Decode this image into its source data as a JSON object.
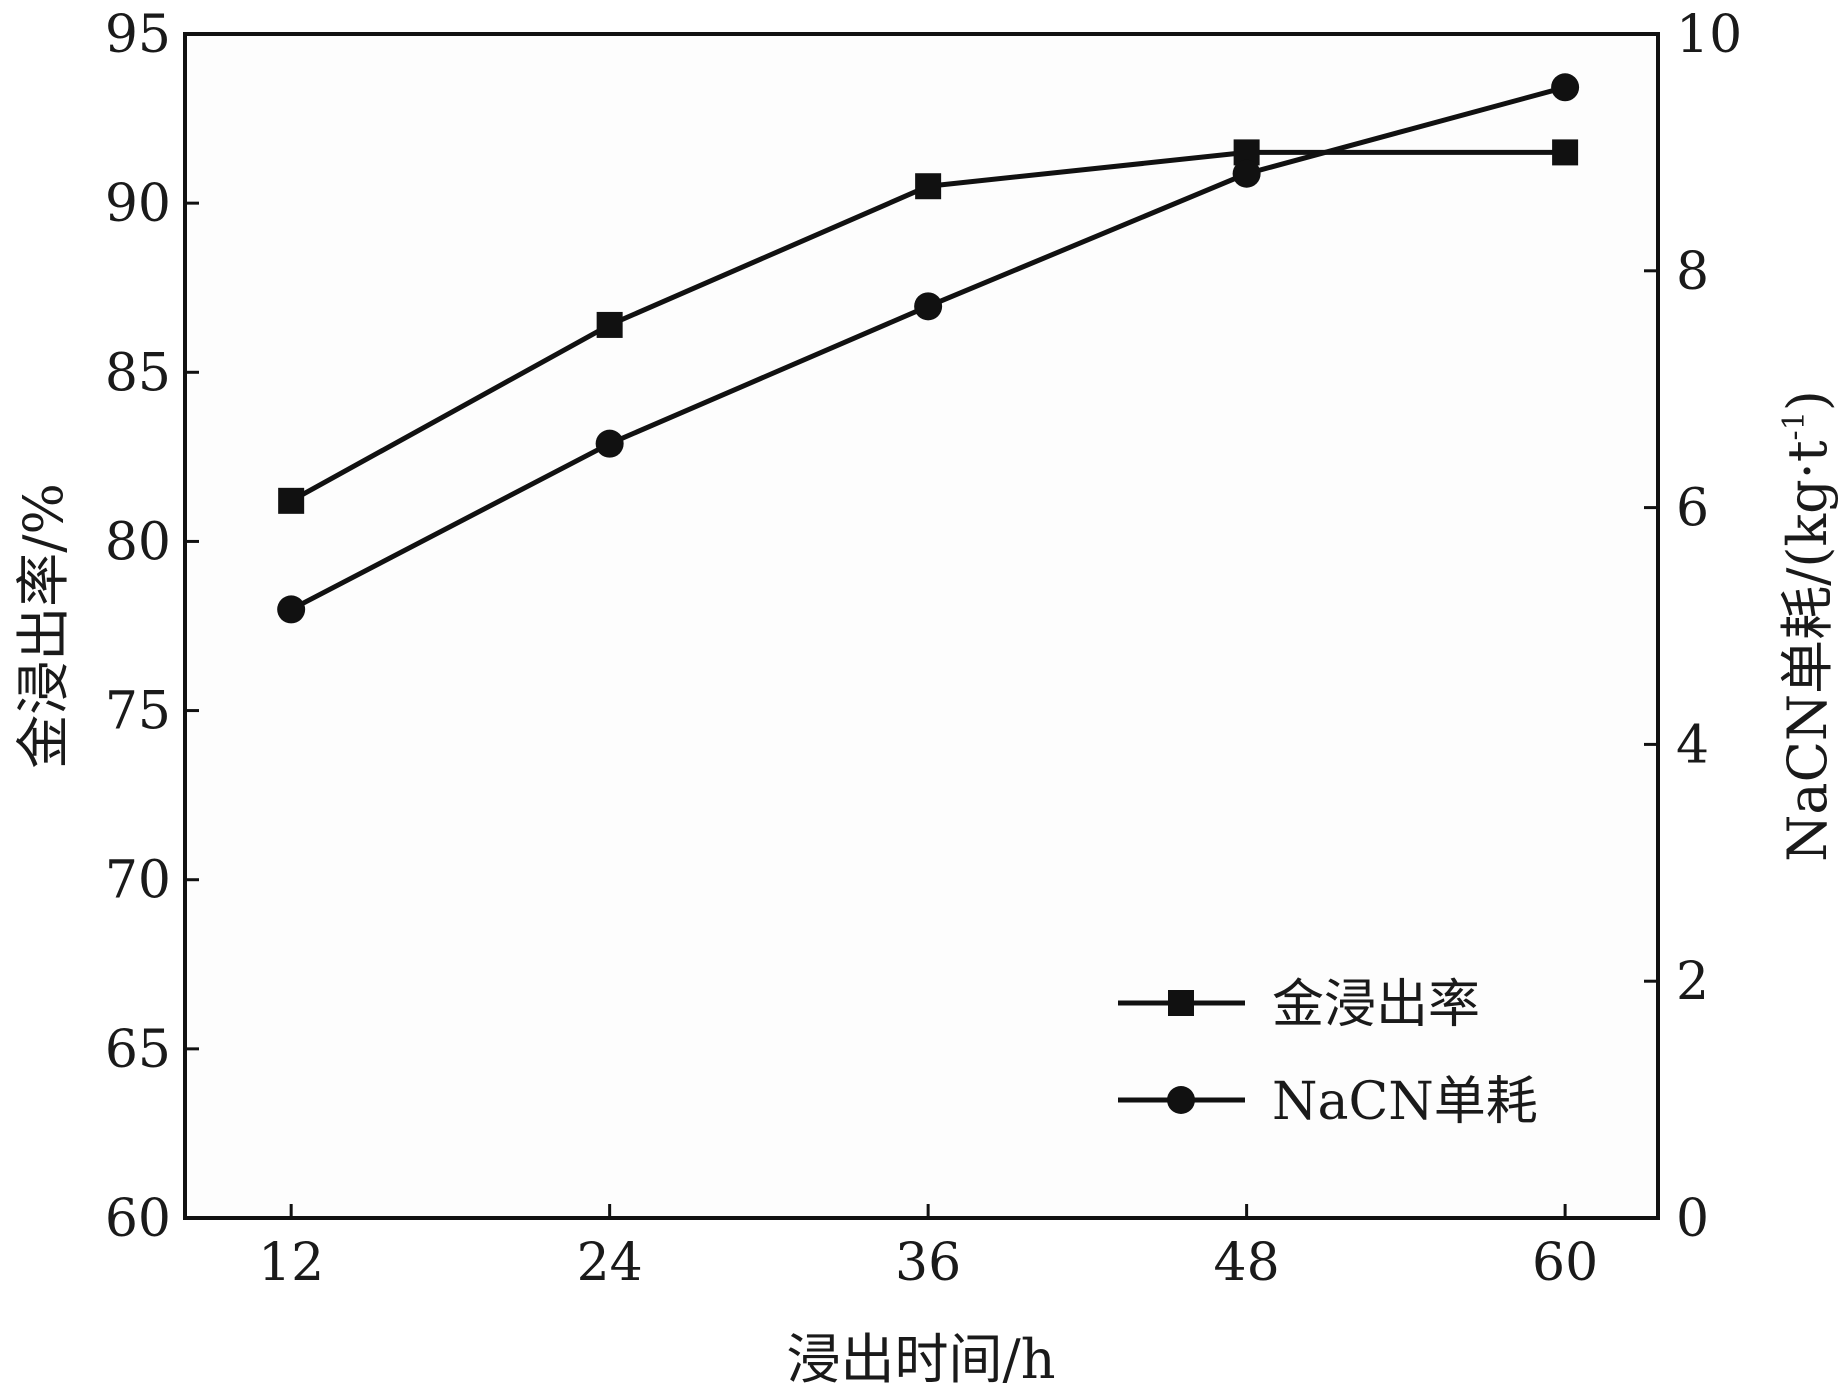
{
  "chart_data": {
    "type": "line",
    "xlabel": "浸出时间/h",
    "ylabel_left": "金浸出率/%",
    "ylabel_right_prefix": "NaCN单耗/(kg·t",
    "ylabel_right_sup": "-1",
    "ylabel_right_suffix": ")",
    "x": [
      12,
      24,
      36,
      48,
      60
    ],
    "x_ticks": [
      "12",
      "24",
      "36",
      "48",
      "60"
    ],
    "xlim": [
      8,
      63.5
    ],
    "ylim_left": [
      60,
      95
    ],
    "ylim_right": [
      0,
      10
    ],
    "yticks_left": [
      "60",
      "65",
      "70",
      "75",
      "80",
      "85",
      "90",
      "95"
    ],
    "yticks_right": [
      "0",
      "2",
      "4",
      "6",
      "8",
      "10"
    ],
    "grid": false,
    "legend_position": "lower-right",
    "series": [
      {
        "name": "金浸出率",
        "axis": "left",
        "marker": "square",
        "values": [
          81.2,
          86.4,
          90.5,
          91.5,
          91.5
        ]
      },
      {
        "name": "NaCN单耗",
        "axis": "right",
        "marker": "circle",
        "values": [
          5.14,
          6.54,
          7.7,
          8.82,
          9.55
        ]
      }
    ],
    "colors": {
      "line": "#111111",
      "plot_bg": "#fdfdfd"
    }
  }
}
